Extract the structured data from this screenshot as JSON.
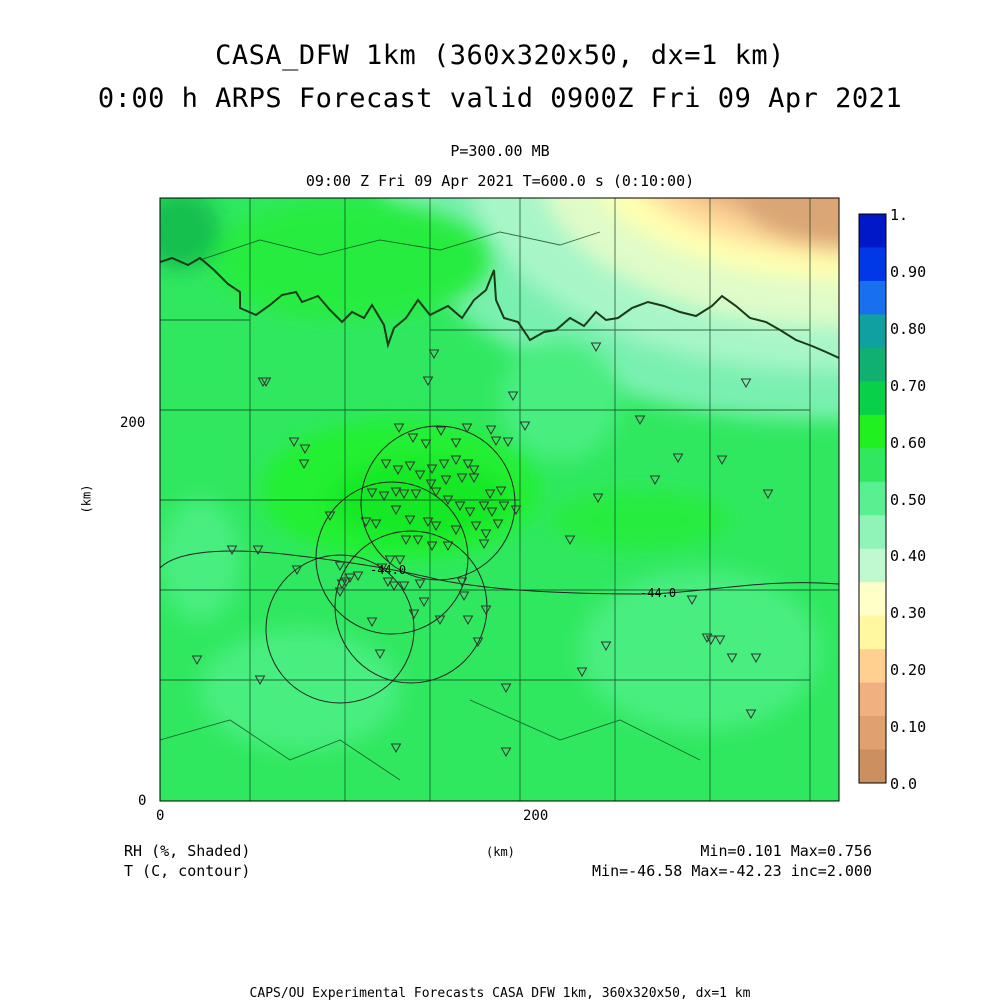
{
  "header": {
    "title_line1": "CASA_DFW 1km (360x320x50, dx=1 km)",
    "title_line2": "0:00 h ARPS Forecast valid 0900Z Fri 09 Apr 2021",
    "level": "P=300.00 MB",
    "time_line": "09:00 Z Fri 09 Apr 2021   T=600.0 s (0:10:00)"
  },
  "axes": {
    "x_ticks": [
      "0",
      "200"
    ],
    "y_ticks": [
      "0",
      "200"
    ],
    "x_label": "(km)",
    "y_label": "(km)"
  },
  "contours": {
    "label_1": "-44.0",
    "label_2": "-44.0"
  },
  "colorbar": {
    "labels": [
      "1.",
      "0.90",
      "0.80",
      "0.70",
      "0.60",
      "0.50",
      "0.40",
      "0.30",
      "0.20",
      "0.10",
      "0.0"
    ],
    "colors": [
      "#0018c8",
      "#0038e8",
      "#1870f0",
      "#10a0a0",
      "#10b070",
      "#08d048",
      "#20f020",
      "#30e860",
      "#58f090",
      "#90f4b8",
      "#c0f8d0",
      "#ffffc8",
      "#fff8a0",
      "#ffd090",
      "#f0b080",
      "#e0a070",
      "#cc9060"
    ]
  },
  "legend": {
    "rh_label": "RH (%, Shaded)",
    "t_label": "T (C, contour)",
    "rh_stats": "Min=0.101 Max=0.756",
    "t_stats": "Min=-46.58 Max=-42.23 inc=2.000",
    "units": "(km)"
  },
  "footer": {
    "credit": "CAPS/OU Experimental Forecasts  CASA DFW 1km, 360x320x50, dx=1 km"
  }
}
